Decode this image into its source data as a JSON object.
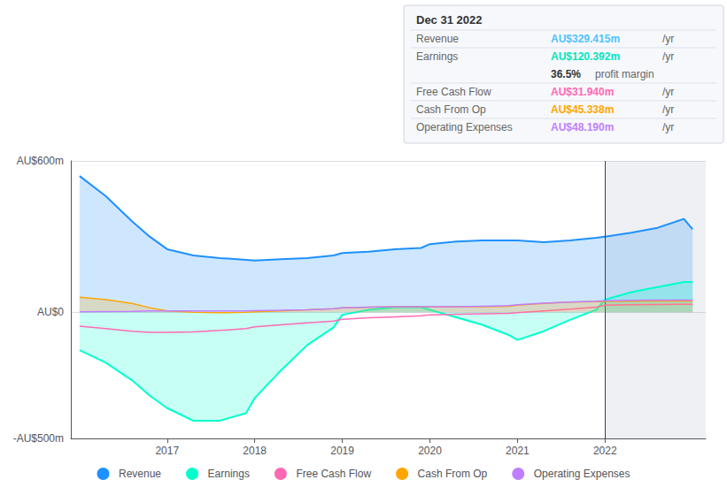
{
  "chart_data": {
    "type": "line",
    "title": "Dec 31 2022",
    "x": [
      2016.0,
      2016.3,
      2016.6,
      2016.8,
      2017.0,
      2017.3,
      2017.6,
      2017.9,
      2018.0,
      2018.3,
      2018.6,
      2018.9,
      2019.0,
      2019.3,
      2019.6,
      2019.9,
      2020.0,
      2020.3,
      2020.6,
      2020.9,
      2021.0,
      2021.3,
      2021.6,
      2021.9,
      2022.0,
      2022.3,
      2022.6,
      2022.9,
      2023.0
    ],
    "series": [
      {
        "name": "Revenue",
        "color": "#1e90ff",
        "type": "area",
        "values": [
          540,
          460,
          360,
          300,
          250,
          225,
          215,
          208,
          205,
          210,
          215,
          225,
          235,
          240,
          250,
          255,
          270,
          280,
          285,
          285,
          285,
          278,
          285,
          295,
          300,
          315,
          335,
          370,
          329
        ]
      },
      {
        "name": "Earnings",
        "color": "#00ffcc",
        "type": "area",
        "values": [
          -150,
          -200,
          -270,
          -330,
          -380,
          -430,
          -430,
          -400,
          -340,
          -230,
          -130,
          -60,
          -10,
          10,
          20,
          20,
          10,
          -20,
          -50,
          -90,
          -110,
          -75,
          -30,
          10,
          50,
          80,
          100,
          120,
          120
        ]
      },
      {
        "name": "Free Cash Flow",
        "color": "#ff69b4",
        "type": "line",
        "values": [
          -55,
          -65,
          -75,
          -80,
          -80,
          -78,
          -72,
          -65,
          -58,
          -50,
          -42,
          -35,
          -28,
          -22,
          -18,
          -14,
          -10,
          -8,
          -6,
          -4,
          -2,
          5,
          12,
          20,
          28,
          30,
          31,
          32,
          32
        ]
      },
      {
        "name": "Cash From Op",
        "color": "#ffa500",
        "type": "area",
        "values": [
          60,
          50,
          35,
          18,
          5,
          0,
          -2,
          0,
          2,
          5,
          10,
          14,
          18,
          20,
          22,
          22,
          22,
          22,
          22,
          24,
          28,
          35,
          40,
          42,
          43,
          44,
          45,
          45,
          45
        ]
      },
      {
        "name": "Operating Expenses",
        "color": "#bf7fff",
        "type": "line",
        "values": [
          2,
          3,
          4,
          5,
          5,
          5,
          5,
          5,
          6,
          8,
          10,
          14,
          18,
          20,
          22,
          22,
          22,
          22,
          24,
          26,
          30,
          36,
          40,
          44,
          46,
          47,
          48,
          48,
          48
        ]
      }
    ],
    "xlim": [
      2015.9,
      2023.15
    ],
    "xticks": [
      2017,
      2018,
      2019,
      2020,
      2021,
      2022
    ],
    "ylim": [
      -500,
      600
    ],
    "yticks": [
      {
        "value": -500,
        "label": "-AU$500m"
      },
      {
        "value": 0,
        "label": "AU$0"
      },
      {
        "value": 600,
        "label": "AU$600m"
      }
    ],
    "grid": true,
    "legend": "bottom",
    "divider_x": 2022.0,
    "annotations": [
      {
        "label": "Revenue",
        "value": "AU$329.415m",
        "unit": "/yr",
        "color": "#4dc3ff"
      },
      {
        "label": "Earnings",
        "value": "AU$120.392m",
        "unit": "/yr",
        "color": "#00e5c0"
      },
      {
        "label": "profit margin",
        "value": "36.5%"
      },
      {
        "label": "Free Cash Flow",
        "value": "AU$31.940m",
        "unit": "/yr",
        "color": "#ff69b4"
      },
      {
        "label": "Cash From Op",
        "value": "AU$45.338m",
        "unit": "/yr",
        "color": "#ffa500"
      },
      {
        "label": "Operating Expenses",
        "value": "AU$48.190m",
        "unit": "/yr",
        "color": "#bf7fff"
      }
    ]
  }
}
